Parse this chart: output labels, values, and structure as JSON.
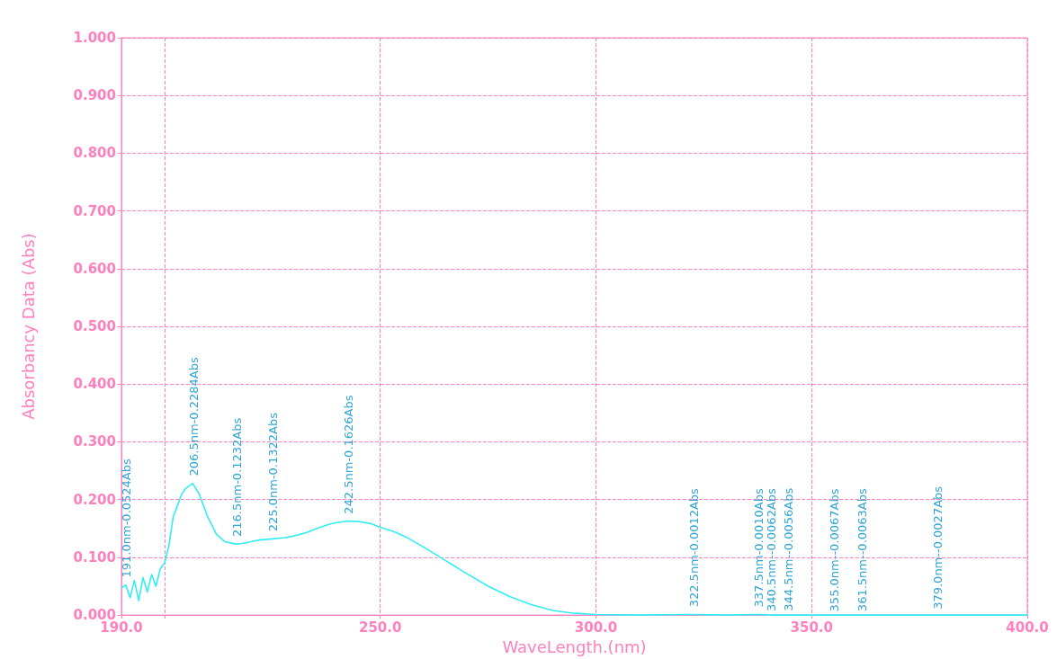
{
  "chart_data": {
    "type": "line",
    "xlabel": "WaveLength.(nm)",
    "ylabel": "Absorbancy Data (Abs)",
    "xlim": [
      190,
      400
    ],
    "xticks": [
      {
        "value": 190,
        "label": "190.0"
      },
      {
        "value": 200,
        "label": null
      },
      {
        "value": 250,
        "label": "250.0"
      },
      {
        "value": 300,
        "label": "300.0"
      },
      {
        "value": 350,
        "label": "350.0"
      },
      {
        "value": 400,
        "label": "400.0"
      }
    ],
    "ylim": [
      0,
      1
    ],
    "yticks": [
      {
        "value": 0,
        "label": "0.000"
      },
      {
        "value": 0.1,
        "label": "0.100"
      },
      {
        "value": 0.2,
        "label": "0.200"
      },
      {
        "value": 0.3,
        "label": "0.300"
      },
      {
        "value": 0.4,
        "label": "0.400"
      },
      {
        "value": 0.5,
        "label": "0.500"
      },
      {
        "value": 0.6,
        "label": "0.600"
      },
      {
        "value": 0.7,
        "label": "0.700"
      },
      {
        "value": 0.8,
        "label": "0.800"
      },
      {
        "value": 0.9,
        "label": "0.900"
      },
      {
        "value": 1,
        "label": "1.000"
      }
    ],
    "grid": true,
    "marker": "none",
    "line_style": "solid",
    "series": [
      {
        "color": "#33eef0",
        "x": [
          190,
          191,
          192,
          193,
          194,
          195,
          196,
          197,
          198,
          199,
          200,
          201,
          202,
          203,
          204,
          205,
          206.5,
          208,
          210,
          212,
          214,
          216.5,
          218,
          220,
          222,
          225,
          228,
          230,
          233,
          236,
          239,
          242.5,
          245,
          248,
          250,
          253,
          256,
          260,
          265,
          270,
          275,
          280,
          285,
          290,
          295,
          300,
          310,
          322.5,
          330,
          337.5,
          340.5,
          345,
          355,
          361.5,
          370,
          379,
          390,
          400
        ],
        "values": [
          0.047,
          0.052,
          0.03,
          0.06,
          0.025,
          0.065,
          0.04,
          0.07,
          0.05,
          0.08,
          0.09,
          0.12,
          0.17,
          0.19,
          0.21,
          0.22,
          0.228,
          0.21,
          0.17,
          0.14,
          0.127,
          0.123,
          0.124,
          0.127,
          0.13,
          0.132,
          0.134,
          0.137,
          0.143,
          0.152,
          0.159,
          0.163,
          0.162,
          0.158,
          0.152,
          0.145,
          0.135,
          0.118,
          0.095,
          0.072,
          0.05,
          0.032,
          0.018,
          0.008,
          0.003,
          0.001,
          0,
          0.001,
          0,
          0.001,
          0,
          0,
          0,
          0,
          0,
          0,
          0,
          0
        ]
      }
    ],
    "annotations": [
      {
        "text": "191.0nm-0.0524Abs",
        "x": 191,
        "y": 0.0524
      },
      {
        "text": "206.5nm-0.2284Abs",
        "x": 206.5,
        "y": 0.2284
      },
      {
        "text": "216.5nm-0.1232Abs",
        "x": 216.5,
        "y": 0.1232
      },
      {
        "text": "225.0nm-0.1322Abs",
        "x": 225,
        "y": 0.1322
      },
      {
        "text": "242.5nm-0.1626Abs",
        "x": 242.5,
        "y": 0.1626
      },
      {
        "text": "322.5nm-0.0012Abs",
        "x": 322.5,
        "y": 0.0012
      },
      {
        "text": "337.5nm-0.0010Abs",
        "x": 337.5,
        "y": 0.001
      },
      {
        "text": "340.5nm--0.0062Abs",
        "x": 340.5,
        "y": -0.0062
      },
      {
        "text": "344.5nm--0.0056Abs",
        "x": 344.5,
        "y": -0.0056
      },
      {
        "text": "355.0nm--0.0067Abs",
        "x": 355,
        "y": -0.0067
      },
      {
        "text": "361.5nm--0.0063Abs",
        "x": 361.5,
        "y": -0.0063
      },
      {
        "text": "379.0nm--0.0027Abs",
        "x": 379,
        "y": -0.0027
      }
    ]
  }
}
